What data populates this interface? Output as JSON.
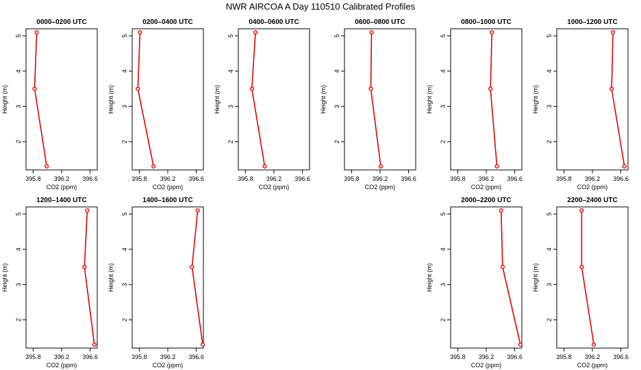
{
  "figure_title": "NWR AIRCOA A  Day 110510  Calibrated Profiles",
  "colors": {
    "series": "#e00000",
    "axis": "#000000",
    "background": "#ffffff"
  },
  "chart_data": [
    {
      "type": "line",
      "title": "0000–0200 UTC",
      "xlabel": "CO2 (ppm)",
      "ylabel": "Height (m)",
      "x_ticks": [
        "395.8",
        "396.2",
        "396.6"
      ],
      "y_ticks": [
        "2",
        "3",
        "4",
        "5"
      ],
      "xlim": [
        395.7,
        396.7
      ],
      "ylim": [
        1.2,
        5.2
      ],
      "series": [
        {
          "x": [
            395.99,
            395.82,
            395.85
          ],
          "y": [
            1.3,
            3.5,
            5.1
          ]
        }
      ]
    },
    {
      "type": "line",
      "title": "0200–0400 UTC",
      "xlabel": "CO2 (ppm)",
      "ylabel": "Height (m)",
      "x_ticks": [
        "395.8",
        "396.2",
        "396.6"
      ],
      "y_ticks": [
        "2",
        "3",
        "4",
        "5"
      ],
      "xlim": [
        395.7,
        396.7
      ],
      "ylim": [
        1.2,
        5.2
      ],
      "series": [
        {
          "x": [
            396.0,
            395.78,
            395.81
          ],
          "y": [
            1.3,
            3.5,
            5.1
          ]
        }
      ]
    },
    {
      "type": "line",
      "title": "0400–0600 UTC",
      "xlabel": "CO2 (ppm)",
      "ylabel": "Height (m)",
      "x_ticks": [
        "395.8",
        "396.2",
        "396.6"
      ],
      "y_ticks": [
        "2",
        "3",
        "4",
        "5"
      ],
      "xlim": [
        395.7,
        396.7
      ],
      "ylim": [
        1.2,
        5.2
      ],
      "series": [
        {
          "x": [
            396.07,
            395.89,
            395.94
          ],
          "y": [
            1.3,
            3.5,
            5.1
          ]
        }
      ]
    },
    {
      "type": "line",
      "title": "0600–0800 UTC",
      "xlabel": "CO2 (ppm)",
      "ylabel": "Height (m)",
      "x_ticks": [
        "395.8",
        "396.2",
        "396.6"
      ],
      "y_ticks": [
        "2",
        "3",
        "4",
        "5"
      ],
      "xlim": [
        395.7,
        396.7
      ],
      "ylim": [
        1.2,
        5.2
      ],
      "series": [
        {
          "x": [
            396.21,
            396.07,
            396.08
          ],
          "y": [
            1.3,
            3.5,
            5.1
          ]
        }
      ]
    },
    {
      "type": "line",
      "title": "0800–1000 UTC",
      "xlabel": "CO2 (ppm)",
      "ylabel": "Height (m)",
      "x_ticks": [
        "395.8",
        "396.2",
        "396.6"
      ],
      "y_ticks": [
        "2",
        "3",
        "4",
        "5"
      ],
      "xlim": [
        395.7,
        396.7
      ],
      "ylim": [
        1.2,
        5.2
      ],
      "series": [
        {
          "x": [
            396.35,
            396.26,
            396.28
          ],
          "y": [
            1.3,
            3.5,
            5.1
          ]
        }
      ]
    },
    {
      "type": "line",
      "title": "1000–1200 UTC",
      "xlabel": "CO2 (ppm)",
      "ylabel": "Height (m)",
      "x_ticks": [
        "395.8",
        "396.2",
        "396.6"
      ],
      "y_ticks": [
        "2",
        "3",
        "4",
        "5"
      ],
      "xlim": [
        395.7,
        396.7
      ],
      "ylim": [
        1.2,
        5.2
      ],
      "series": [
        {
          "x": [
            396.65,
            396.47,
            396.49
          ],
          "y": [
            1.3,
            3.5,
            5.1
          ]
        }
      ]
    },
    {
      "type": "line",
      "title": "1200–1400 UTC",
      "xlabel": "CO2 (ppm)",
      "ylabel": "Height (m)",
      "x_ticks": [
        "395.8",
        "396.2",
        "396.6"
      ],
      "y_ticks": [
        "2",
        "3",
        "4",
        "5"
      ],
      "xlim": [
        395.7,
        396.7
      ],
      "ylim": [
        1.2,
        5.2
      ],
      "series": [
        {
          "x": [
            396.66,
            396.52,
            396.56
          ],
          "y": [
            1.3,
            3.5,
            5.1
          ]
        }
      ]
    },
    {
      "type": "line",
      "title": "1400–1600 UTC",
      "xlabel": "CO2 (ppm)",
      "ylabel": "Height (m)",
      "x_ticks": [
        "395.8",
        "396.2",
        "396.6"
      ],
      "y_ticks": [
        "2",
        "3",
        "4",
        "5"
      ],
      "xlim": [
        395.7,
        396.7
      ],
      "ylim": [
        1.2,
        5.2
      ],
      "series": [
        {
          "x": [
            396.69,
            396.54,
            396.62
          ],
          "y": [
            1.3,
            3.5,
            5.1
          ]
        }
      ]
    },
    {
      "type": "line",
      "title": "2000–2200 UTC",
      "xlabel": "CO2 (ppm)",
      "ylabel": "Height (m)",
      "x_ticks": [
        "395.8",
        "396.2",
        "396.6"
      ],
      "y_ticks": [
        "2",
        "3",
        "4",
        "5"
      ],
      "xlim": [
        395.7,
        396.7
      ],
      "ylim": [
        1.2,
        5.2
      ],
      "series": [
        {
          "x": [
            396.68,
            396.43,
            396.41
          ],
          "y": [
            1.3,
            3.5,
            5.1
          ]
        }
      ]
    },
    {
      "type": "line",
      "title": "2200–2400 UTC",
      "xlabel": "CO2 (ppm)",
      "ylabel": "Height (m)",
      "x_ticks": [
        "395.8",
        "396.2",
        "396.6"
      ],
      "y_ticks": [
        "2",
        "3",
        "4",
        "5"
      ],
      "xlim": [
        395.7,
        396.7
      ],
      "ylim": [
        1.2,
        5.2
      ],
      "series": [
        {
          "x": [
            396.22,
            396.05,
            396.05
          ],
          "y": [
            1.3,
            3.5,
            5.1
          ]
        }
      ]
    }
  ]
}
